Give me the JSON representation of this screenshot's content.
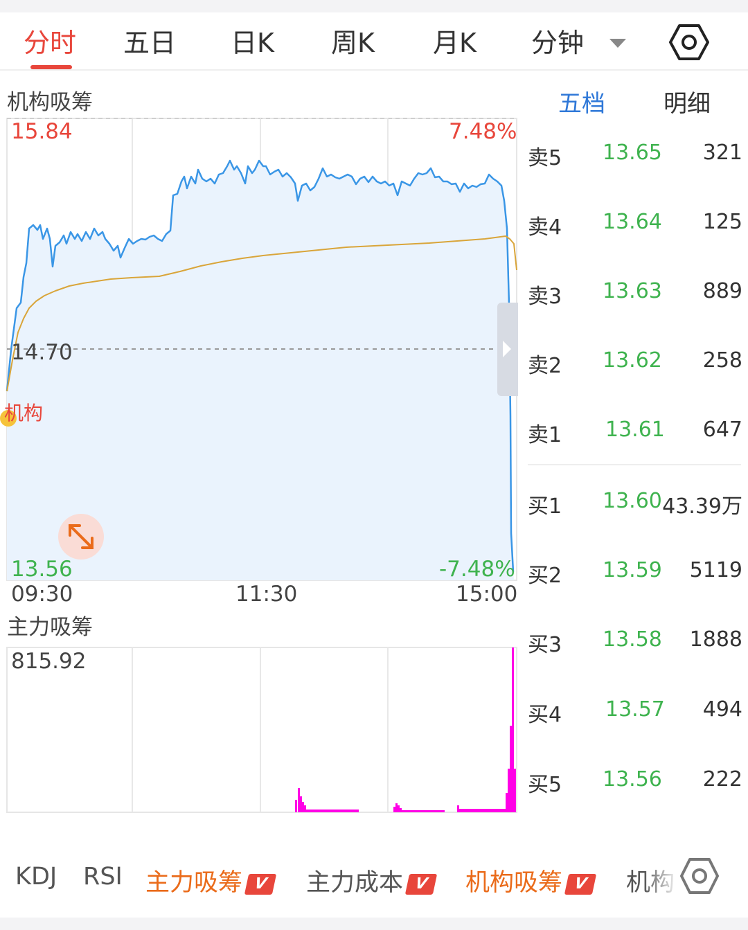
{
  "tabs": {
    "items": [
      {
        "label": "分时",
        "active": true
      },
      {
        "label": "五日"
      },
      {
        "label": "日K"
      },
      {
        "label": "周K"
      },
      {
        "label": "月K"
      },
      {
        "label": "分钟"
      }
    ],
    "settings_icon": "hexagon-gear-icon",
    "dropdown_icon": "triangle-down-icon"
  },
  "main_chart": {
    "title": "机构吸筹",
    "high_price": "15.84",
    "high_pct": "7.48%",
    "mid_price": "14.70",
    "low_price": "13.56",
    "low_pct": "-7.48%",
    "marker_label": "机构",
    "time_labels": [
      "09:30",
      "11:30",
      "15:00"
    ],
    "colors": {
      "price_line": "#3a96e6",
      "avg_line": "#d9a53a",
      "fill": "#eaf3fd",
      "up": "#e8463b",
      "down": "#3fb34f"
    }
  },
  "sub_chart": {
    "title": "主力吸筹",
    "max_value": "815.92",
    "bar_color": "#ff00e6"
  },
  "order_book": {
    "tabs": [
      {
        "label": "五档",
        "active": true
      },
      {
        "label": "明细"
      }
    ],
    "sells": [
      {
        "name": "卖5",
        "price": "13.65",
        "vol": "321"
      },
      {
        "name": "卖4",
        "price": "13.64",
        "vol": "125"
      },
      {
        "name": "卖3",
        "price": "13.63",
        "vol": "889"
      },
      {
        "name": "卖2",
        "price": "13.62",
        "vol": "258"
      },
      {
        "name": "卖1",
        "price": "13.61",
        "vol": "647"
      }
    ],
    "buys": [
      {
        "name": "买1",
        "price": "13.60",
        "vol": "43.39万"
      },
      {
        "name": "买2",
        "price": "13.59",
        "vol": "5119"
      },
      {
        "name": "买3",
        "price": "13.58",
        "vol": "1888"
      },
      {
        "name": "买4",
        "price": "13.57",
        "vol": "494"
      },
      {
        "name": "买5",
        "price": "13.56",
        "vol": "222"
      }
    ]
  },
  "indicators": {
    "items": [
      {
        "label": "KDJ",
        "style": "grey"
      },
      {
        "label": "RSI",
        "style": "grey"
      },
      {
        "label": "主力吸筹",
        "style": "orange",
        "badge": "V"
      },
      {
        "label": "主力成本",
        "style": "grey",
        "badge": "V"
      },
      {
        "label": "机构吸筹",
        "style": "orange",
        "badge": "V"
      },
      {
        "label": "机构",
        "style": "grey"
      }
    ],
    "settings_icon": "hexagon-gear-icon"
  },
  "chart_data": {
    "type": "line",
    "x": [
      "09:30",
      "11:30",
      "15:00"
    ],
    "ylim": [
      13.56,
      15.84
    ],
    "series": [],
    "y_pct_range": [
      "-7.48%",
      "7.48%"
    ],
    "reference_price": 14.7
  }
}
